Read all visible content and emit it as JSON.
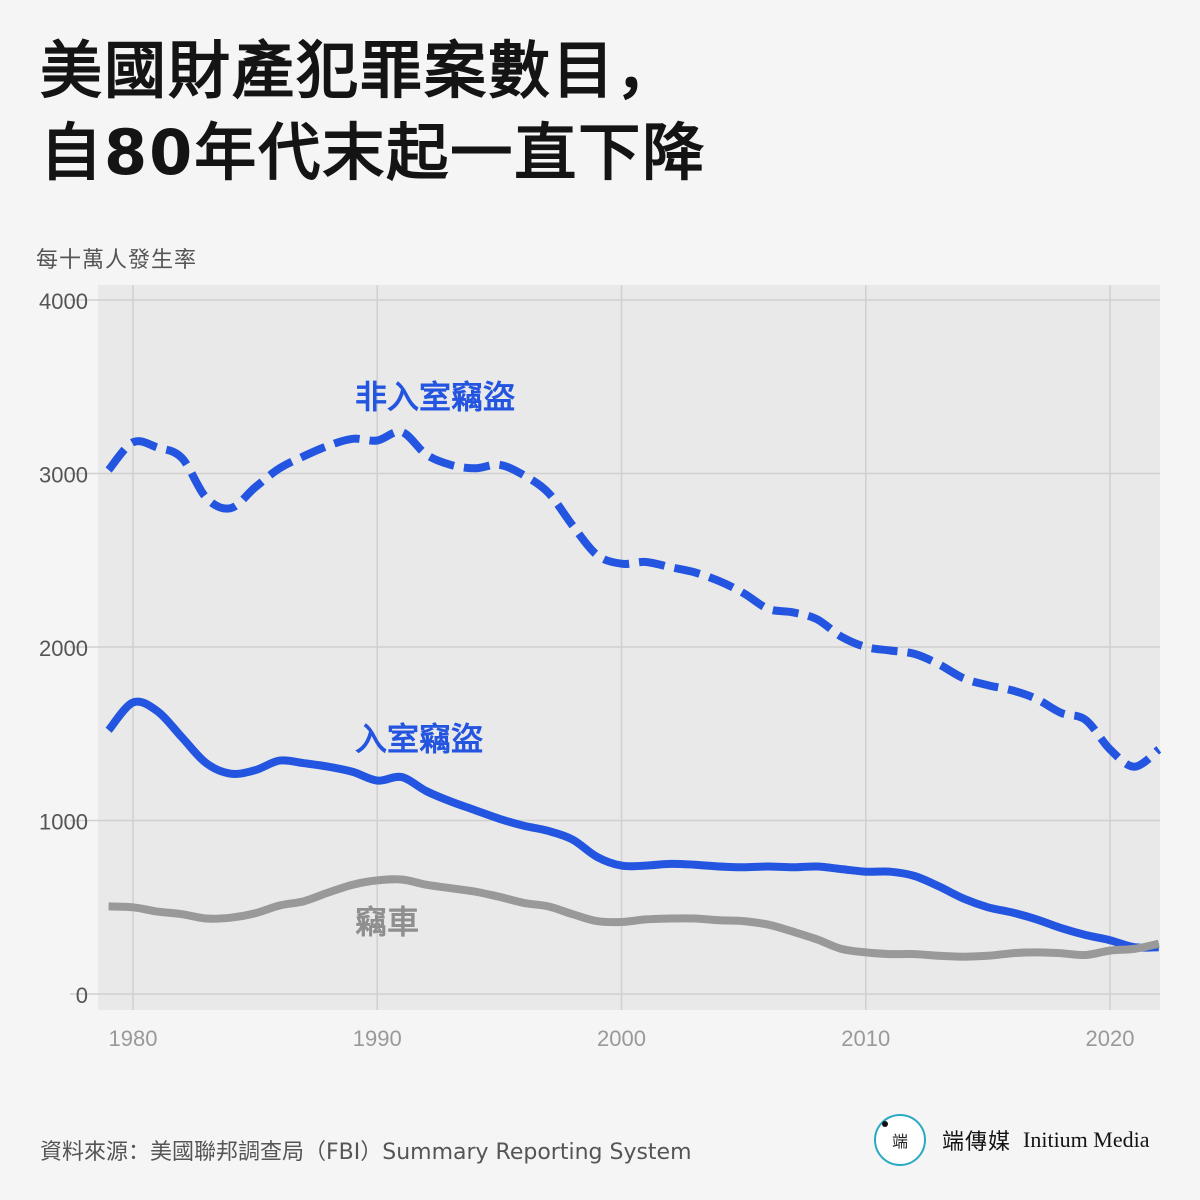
{
  "title": {
    "line1": "美國財產犯罪案數目，",
    "line2": "自80年代末起一直下降"
  },
  "source": "資料來源：美國聯邦調查局（FBI）Summary Reporting System",
  "brand": {
    "logo_text": "端",
    "name": "端傳媒",
    "english": "Initium Media"
  },
  "chart_data": {
    "type": "line",
    "ylabel": "每十萬人發生率",
    "ylim": [
      0,
      4000
    ],
    "xlim": [
      1979,
      2022
    ],
    "yticks": [
      0,
      1000,
      2000,
      3000,
      4000
    ],
    "xticks": [
      1980,
      1990,
      2000,
      2010,
      2020
    ],
    "grid": true,
    "series": [
      {
        "name": "非入室竊盜",
        "color": "#2355e0",
        "dashed": true,
        "x": [
          1979,
          1980,
          1981,
          1982,
          1983,
          1984,
          1985,
          1986,
          1987,
          1988,
          1989,
          1990,
          1991,
          1992,
          1993,
          1994,
          1995,
          1996,
          1997,
          1998,
          1999,
          2000,
          2001,
          2002,
          2003,
          2004,
          2005,
          2006,
          2007,
          2008,
          2009,
          2010,
          2011,
          2012,
          2013,
          2014,
          2015,
          2016,
          2017,
          2018,
          2019,
          2020,
          2021,
          2022
        ],
        "values": [
          3020,
          3180,
          3150,
          3090,
          2860,
          2800,
          2920,
          3030,
          3100,
          3160,
          3200,
          3190,
          3240,
          3110,
          3050,
          3030,
          3050,
          2990,
          2890,
          2700,
          2530,
          2480,
          2490,
          2460,
          2430,
          2380,
          2310,
          2220,
          2200,
          2160,
          2060,
          2000,
          1980,
          1960,
          1900,
          1820,
          1780,
          1750,
          1700,
          1620,
          1580,
          1410,
          1310,
          1410
        ]
      },
      {
        "name": "入室竊盜",
        "color": "#2355e0",
        "dashed": false,
        "x": [
          1979,
          1980,
          1981,
          1982,
          1983,
          1984,
          1985,
          1986,
          1987,
          1988,
          1989,
          1990,
          1991,
          1992,
          1993,
          1994,
          1995,
          1996,
          1997,
          1998,
          1999,
          2000,
          2001,
          2002,
          2003,
          2004,
          2005,
          2006,
          2007,
          2008,
          2009,
          2010,
          2011,
          2012,
          2013,
          2014,
          2015,
          2016,
          2017,
          2018,
          2019,
          2020,
          2021,
          2022
        ],
        "values": [
          1520,
          1680,
          1630,
          1480,
          1330,
          1270,
          1290,
          1345,
          1330,
          1310,
          1280,
          1230,
          1250,
          1170,
          1110,
          1060,
          1010,
          970,
          940,
          890,
          790,
          740,
          740,
          750,
          745,
          735,
          730,
          735,
          730,
          735,
          720,
          705,
          705,
          680,
          620,
          550,
          500,
          470,
          430,
          380,
          340,
          310,
          270,
          270
        ]
      },
      {
        "name": "竊車",
        "color": "#999999",
        "dashed": false,
        "x": [
          1979,
          1980,
          1981,
          1982,
          1983,
          1984,
          1985,
          1986,
          1987,
          1988,
          1989,
          1990,
          1991,
          1992,
          1993,
          1994,
          1995,
          1996,
          1997,
          1998,
          1999,
          2000,
          2001,
          2002,
          2003,
          2004,
          2005,
          2006,
          2007,
          2008,
          2009,
          2010,
          2011,
          2012,
          2013,
          2014,
          2015,
          2016,
          2017,
          2018,
          2019,
          2020,
          2021,
          2022
        ],
        "values": [
          505,
          500,
          475,
          460,
          435,
          440,
          465,
          510,
          535,
          585,
          630,
          655,
          660,
          630,
          610,
          590,
          560,
          525,
          505,
          460,
          420,
          415,
          430,
          435,
          435,
          425,
          420,
          400,
          360,
          315,
          260,
          240,
          230,
          230,
          220,
          215,
          220,
          235,
          240,
          235,
          225,
          250,
          260,
          290
        ]
      }
    ]
  }
}
